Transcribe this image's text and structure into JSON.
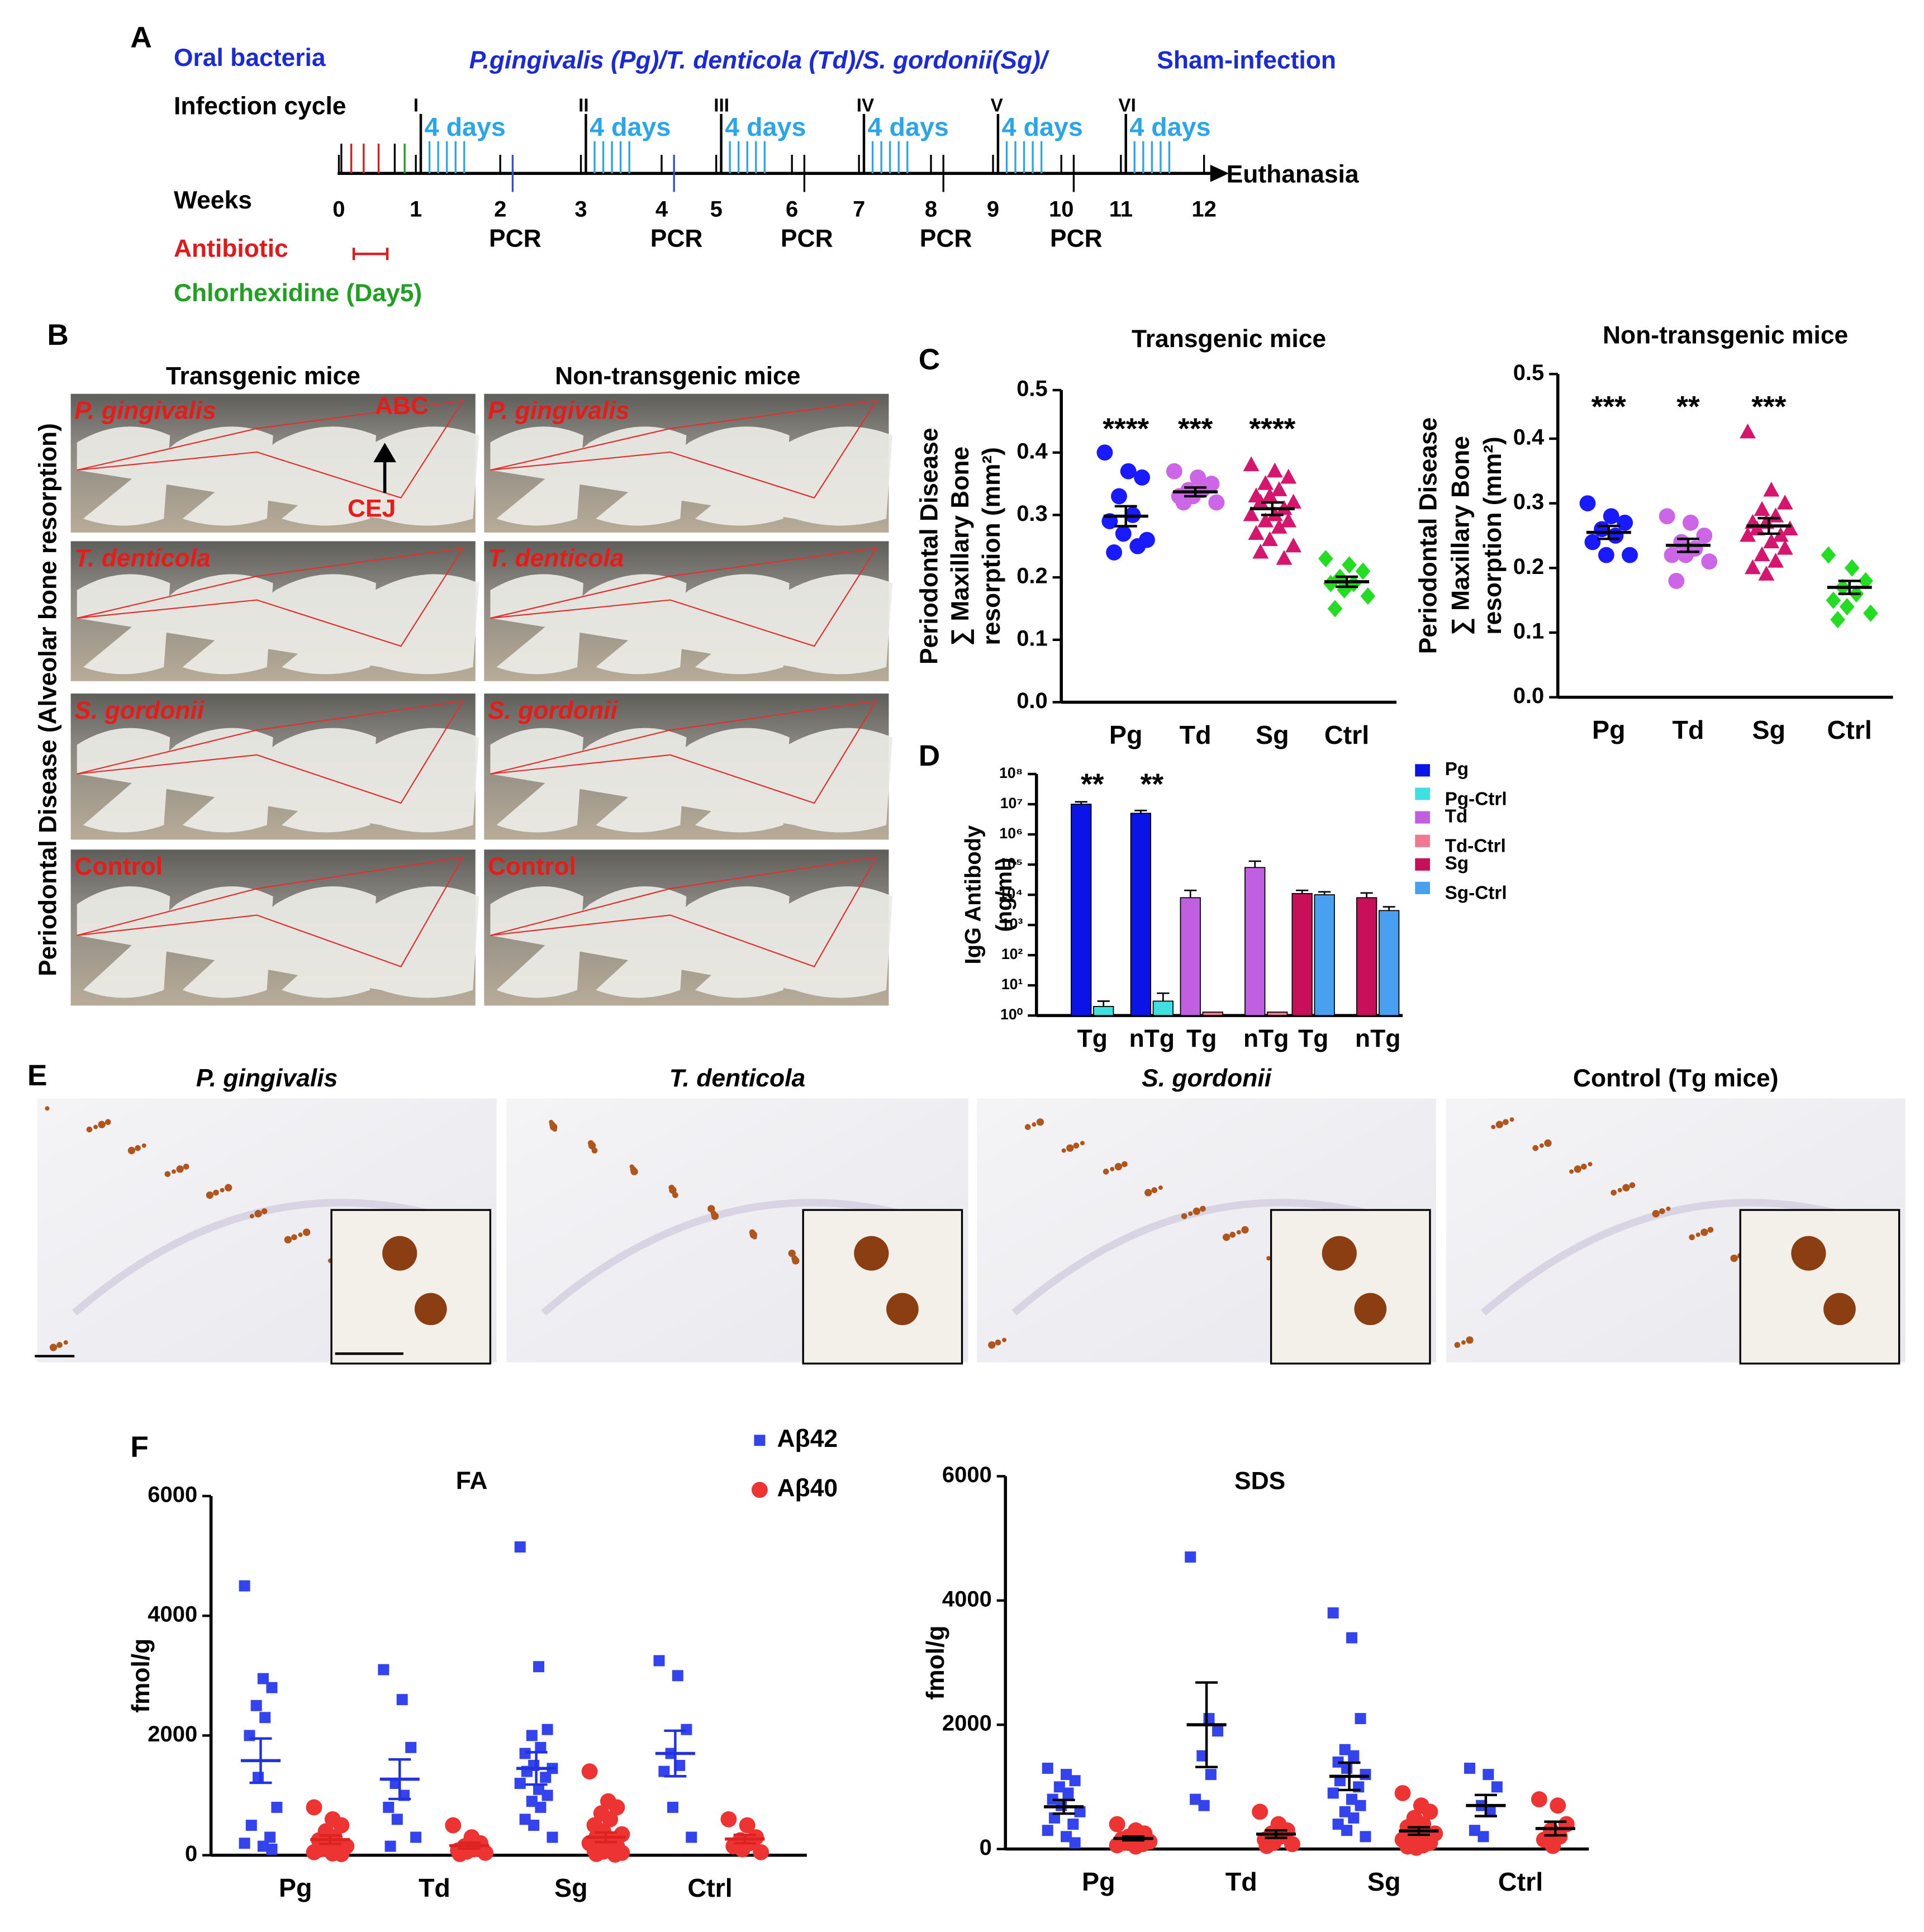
{
  "panel_labels": [
    "A",
    "B",
    "C",
    "D",
    "E",
    "F"
  ],
  "timeline": {
    "bacteria_label": "Oral bacteria",
    "bacteria": "P.gingivalis (Pg)/T. denticola (Td)/S. gordonii(Sg)/",
    "sham": "Sham-infection",
    "cycle_label": "Infection cycle",
    "cycles": [
      "I",
      "II",
      "III",
      "IV",
      "V",
      "VI"
    ],
    "cycle_duration": "4 days",
    "weeks_label": "Weeks",
    "weeks": [
      0,
      1,
      2,
      3,
      4,
      5,
      6,
      7,
      8,
      9,
      10,
      11,
      12
    ],
    "end_label": "Euthanasia",
    "pcr": "PCR",
    "antibiotic": "Antibiotic",
    "chlorhexidine": "Chlorhexidine (Day5)"
  },
  "panel_b": {
    "columns": [
      "Transgenic mice",
      "Non-transgenic mice"
    ],
    "side_label": "Periodontal Disease (Alveolar bone resorption)",
    "rows": [
      "P. gingivalis",
      "T. denticola",
      "S. gordonii",
      "Control"
    ],
    "abc": "ABC",
    "cej": "CEJ"
  },
  "panel_e": {
    "titles": [
      "P. gingivalis",
      "T. denticola",
      "S. gordonii",
      "Control (Tg mice)"
    ]
  },
  "chart_data": [
    {
      "type": "dot",
      "title": "Transgenic mice",
      "y_label": [
        "Periodontal Disease",
        "∑ Maxillary Bone",
        "resorption (mm²)"
      ],
      "categories": [
        "Pg",
        "Td",
        "Sg",
        "Ctrl"
      ],
      "ylim": [
        0,
        0.5
      ],
      "yticks": [
        {
          "value": 0,
          "label": "0.0"
        },
        0.1,
        0.2,
        0.3,
        0.4,
        0.5
      ],
      "annotations": [
        "****",
        "***",
        "****",
        null
      ],
      "series": [
        {
          "colors": [
            "#1a1aff",
            "#cc66e6",
            "#d6156e",
            "#22dd22"
          ],
          "markers": [
            "circle",
            "circle",
            "triangle",
            "diamond"
          ],
          "mean_color": "#000000",
          "groups": [
            [
              0.4,
              0.37,
              0.36,
              0.33,
              0.3,
              0.29,
              0.27,
              0.26,
              0.24,
              0.25
            ],
            [
              0.37,
              0.36,
              0.35,
              0.34,
              0.34,
              0.33,
              0.33,
              0.32,
              0.32
            ],
            [
              0.38,
              0.37,
              0.36,
              0.35,
              0.34,
              0.33,
              0.33,
              0.32,
              0.32,
              0.31,
              0.3,
              0.3,
              0.29,
              0.29,
              0.28,
              0.27,
              0.26,
              0.25,
              0.24,
              0.23
            ],
            [
              0.23,
              0.22,
              0.21,
              0.2,
              0.19,
              0.19,
              0.18,
              0.17,
              0.15
            ]
          ],
          "means": [
            0.298,
            0.337,
            0.31,
            0.193
          ],
          "sems": [
            0.016,
            0.007,
            0.01,
            0.008
          ]
        }
      ]
    },
    {
      "type": "dot",
      "title": "Non-transgenic mice",
      "y_label": [
        "Periodontal Disease",
        "∑ Maxillary Bone",
        "resorption (mm²)"
      ],
      "categories": [
        "Pg",
        "Td",
        "Sg",
        "Ctrl"
      ],
      "ylim": [
        0,
        0.5
      ],
      "yticks": [
        {
          "value": 0,
          "label": "0.0"
        },
        0.1,
        0.2,
        0.3,
        0.4,
        0.5
      ],
      "annotations": [
        "***",
        "**",
        "***",
        null
      ],
      "series": [
        {
          "colors": [
            "#1a1aff",
            "#cc66e6",
            "#d6156e",
            "#22dd22"
          ],
          "markers": [
            "circle",
            "circle",
            "triangle",
            "diamond"
          ],
          "mean_color": "#000000",
          "groups": [
            [
              0.3,
              0.28,
              0.27,
              0.26,
              0.25,
              0.24,
              0.22,
              0.22
            ],
            [
              0.28,
              0.27,
              0.25,
              0.24,
              0.23,
              0.22,
              0.22,
              0.21,
              0.18
            ],
            [
              0.41,
              0.32,
              0.3,
              0.29,
              0.28,
              0.27,
              0.27,
              0.26,
              0.26,
              0.25,
              0.25,
              0.24,
              0.23,
              0.22,
              0.21,
              0.2,
              0.19
            ],
            [
              0.22,
              0.2,
              0.18,
              0.17,
              0.16,
              0.15,
              0.14,
              0.13,
              0.12
            ]
          ],
          "means": [
            0.255,
            0.235,
            0.265,
            0.17
          ],
          "sems": [
            0.01,
            0.01,
            0.012,
            0.01
          ]
        }
      ]
    },
    {
      "type": "bar",
      "y_label": [
        "IgG Antibody",
        "(ng/ml)"
      ],
      "log": true,
      "categories": [
        "Tg",
        "nTg",
        "Tg",
        "nTg",
        "Tg",
        "nTg"
      ],
      "ylim": [
        1,
        100000000
      ],
      "yticks": [
        {
          "value": 1,
          "label": "10⁰"
        },
        {
          "value": 10,
          "label": "10¹"
        },
        {
          "value": 100,
          "label": "10²"
        },
        {
          "value": 1000,
          "label": "10³"
        },
        {
          "value": 10000,
          "label": "10⁴"
        },
        {
          "value": 100000,
          "label": "10⁵"
        },
        {
          "value": 1000000,
          "label": "10⁶"
        },
        {
          "value": 10000000,
          "label": "10⁷"
        },
        {
          "value": 100000000,
          "label": "10⁸"
        }
      ],
      "annotations": [
        "**",
        "**",
        null,
        null,
        null,
        null
      ],
      "series": [
        {
          "name": "Pg",
          "color": "#0a14e6",
          "values": [
            10000000,
            5000000,
            null,
            null,
            null,
            null
          ],
          "errors": [
            2000000,
            1200000,
            null,
            null,
            null,
            null
          ]
        },
        {
          "name": "Pg-Ctrl",
          "color": "#40e0e0",
          "values": [
            2,
            3,
            null,
            null,
            null,
            null
          ],
          "errors": [
            1,
            2.5,
            null,
            null,
            null,
            null
          ]
        },
        {
          "name": "Td",
          "color": "#c060e0",
          "values": [
            null,
            null,
            8000,
            80000,
            null,
            null
          ],
          "errors": [
            null,
            null,
            6000,
            50000,
            null,
            null
          ]
        },
        {
          "name": "Td-Ctrl",
          "color": "#f07890",
          "values": [
            null,
            null,
            1.3,
            1.3,
            null,
            null
          ],
          "errors": [
            null,
            null,
            null,
            null,
            null,
            null
          ]
        },
        {
          "name": "Sg",
          "color": "#c8105a",
          "values": [
            null,
            null,
            null,
            null,
            11000,
            8000
          ],
          "errors": [
            null,
            null,
            null,
            null,
            3000,
            3500
          ]
        },
        {
          "name": "Sg-Ctrl",
          "color": "#4aa0f0",
          "values": [
            null,
            null,
            null,
            null,
            10000,
            3000
          ],
          "errors": [
            null,
            null,
            null,
            null,
            2500,
            1000
          ]
        }
      ]
    },
    {
      "type": "dot",
      "title": "FA",
      "y_label": [
        "fmol/g"
      ],
      "categories": [
        "Pg",
        "Td",
        "Sg",
        "Ctrl"
      ],
      "ylim": [
        0,
        6000
      ],
      "yticks": [
        0,
        2000,
        4000,
        6000
      ],
      "series": [
        {
          "name": "Aβ42",
          "color": "#3344ee",
          "marker": "square",
          "mean_color": "#2233dd",
          "groups": [
            [
              4500,
              2950,
              2800,
              2500,
              2300,
              2000,
              1300,
              800,
              500,
              300,
              200,
              150,
              100
            ],
            [
              3100,
              2600,
              1800,
              1200,
              1000,
              800,
              600,
              300,
              150
            ],
            [
              5150,
              3150,
              2100,
              2000,
              1800,
              1700,
              1500,
              1450,
              1400,
              1300,
              1200,
              1100,
              1000,
              900,
              800,
              600,
              500,
              300
            ],
            [
              3250,
              3000,
              2100,
              1700,
              1500,
              1400,
              800,
              300
            ]
          ],
          "means": [
            1580,
            1270,
            1450,
            1700
          ],
          "sems": [
            370,
            330,
            270,
            380
          ]
        },
        {
          "name": "Aβ40",
          "color": "#ee3333",
          "marker": "circle",
          "mean_color": "#dd2222",
          "groups": [
            [
              800,
              600,
              500,
              400,
              300,
              250,
              200,
              150,
              100,
              80,
              50,
              30,
              20
            ],
            [
              500,
              300,
              200,
              150,
              100,
              80,
              60,
              40,
              20
            ],
            [
              1400,
              900,
              800,
              700,
              600,
              500,
              400,
              350,
              300,
              250,
              200,
              180,
              150,
              120,
              100,
              80,
              60,
              40,
              20,
              10
            ],
            [
              600,
              500,
              300,
              250,
              200,
              150,
              100,
              50
            ]
          ],
          "means": [
            260,
            160,
            300,
            270
          ],
          "sems": [
            70,
            50,
            80,
            70
          ]
        }
      ]
    },
    {
      "type": "dot",
      "title": "SDS",
      "y_label": [
        "fmol/g"
      ],
      "categories": [
        "Pg",
        "Td",
        "Sg",
        "Ctrl"
      ],
      "ylim": [
        0,
        6000
      ],
      "yticks": [
        0,
        2000,
        4000,
        6000
      ],
      "series": [
        {
          "color": "#3344ee",
          "marker": "square",
          "mean_color": "#000000",
          "groups": [
            [
              1300,
              1200,
              1100,
              1000,
              900,
              800,
              700,
              600,
              500,
              400,
              300,
              200,
              100
            ],
            [
              4700,
              2100,
              1900,
              1500,
              1200,
              800,
              700
            ],
            [
              3800,
              3400,
              2100,
              1600,
              1500,
              1400,
              1300,
              1200,
              1100,
              1000,
              900,
              800,
              700,
              600,
              500,
              400,
              300,
              200
            ],
            [
              1300,
              1200,
              1000,
              700,
              600,
              300,
              200
            ]
          ],
          "means": [
            680,
            2000,
            1170,
            700
          ],
          "sems": [
            110,
            680,
            220,
            170
          ]
        },
        {
          "color": "#ee3333",
          "marker": "circle",
          "mean_color": "#000000",
          "groups": [
            [
              400,
              300,
              250,
              200,
              180,
              160,
              140,
              120,
              100,
              80,
              60,
              40
            ],
            [
              600,
              400,
              300,
              250,
              200,
              150,
              100,
              80,
              50
            ],
            [
              900,
              700,
              600,
              500,
              400,
              350,
              300,
              250,
              200,
              180,
              150,
              120,
              100,
              80,
              60,
              40,
              20
            ],
            [
              800,
              700,
              400,
              300,
              200,
              150,
              50
            ]
          ],
          "means": [
            170,
            240,
            290,
            330
          ],
          "sems": [
            30,
            60,
            60,
            110
          ]
        }
      ]
    }
  ]
}
